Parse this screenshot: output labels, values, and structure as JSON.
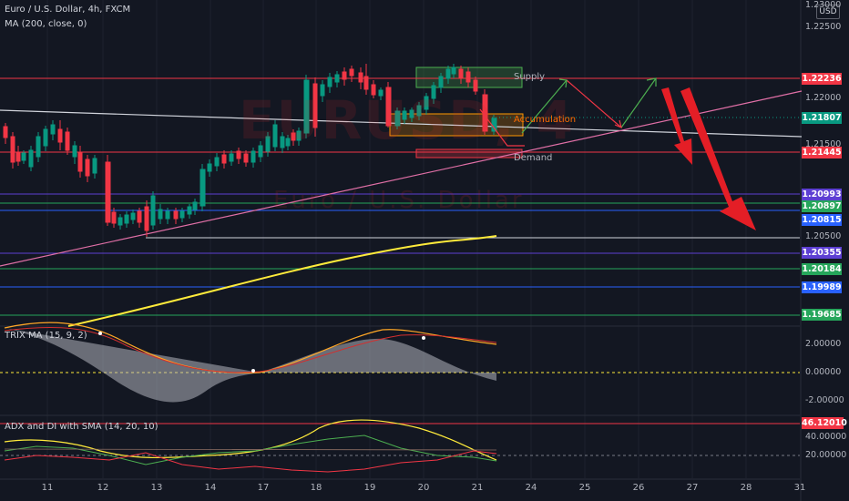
{
  "header": {
    "symbol_line": "Euro / U.S. Dollar, 4h, FXCM",
    "indicator_ma": "MA (200, close, 0)",
    "currency_button": "USD"
  },
  "watermark": {
    "line1": "EURUSD, 4",
    "line2": "Euro / U.S. Dollar"
  },
  "price_axis": {
    "ticks": [
      "1.23000",
      "1.22500",
      "1.22000",
      "1.21500",
      "1.20500"
    ],
    "labels": [
      {
        "value": "1.22236",
        "color": "#f23645"
      },
      {
        "value": "1.21807",
        "color": "#089981"
      },
      {
        "value": "1.21445",
        "color": "#f23645"
      },
      {
        "value": "1.20993",
        "color": "#5d3fd3"
      },
      {
        "value": "1.20897",
        "color": "#26a65b"
      },
      {
        "value": "1.20815",
        "color": "#2962ff"
      },
      {
        "value": "1.20355",
        "color": "#5d3fd3"
      },
      {
        "value": "1.20184",
        "color": "#26a65b"
      },
      {
        "value": "1.19989",
        "color": "#2962ff"
      },
      {
        "value": "1.19685",
        "color": "#26a65b"
      }
    ]
  },
  "zones": {
    "supply": "Supply",
    "accumulation": "Accumulation",
    "demand": "Demand"
  },
  "trix": {
    "title": "TRIX MA (15, 9, 2)",
    "ticks": [
      "2.00000",
      "0.00000",
      "-2.00000"
    ]
  },
  "adx": {
    "title": "ADX and DI with SMA (14, 20, 10)",
    "badge": "46.12010",
    "badge_color": "#f23645",
    "ticks": [
      "40.00000",
      "20.00000"
    ]
  },
  "time_axis": [
    "11",
    "12",
    "13",
    "14",
    "17",
    "18",
    "19",
    "20",
    "21",
    "24",
    "25",
    "26",
    "27",
    "28",
    "31"
  ]
}
